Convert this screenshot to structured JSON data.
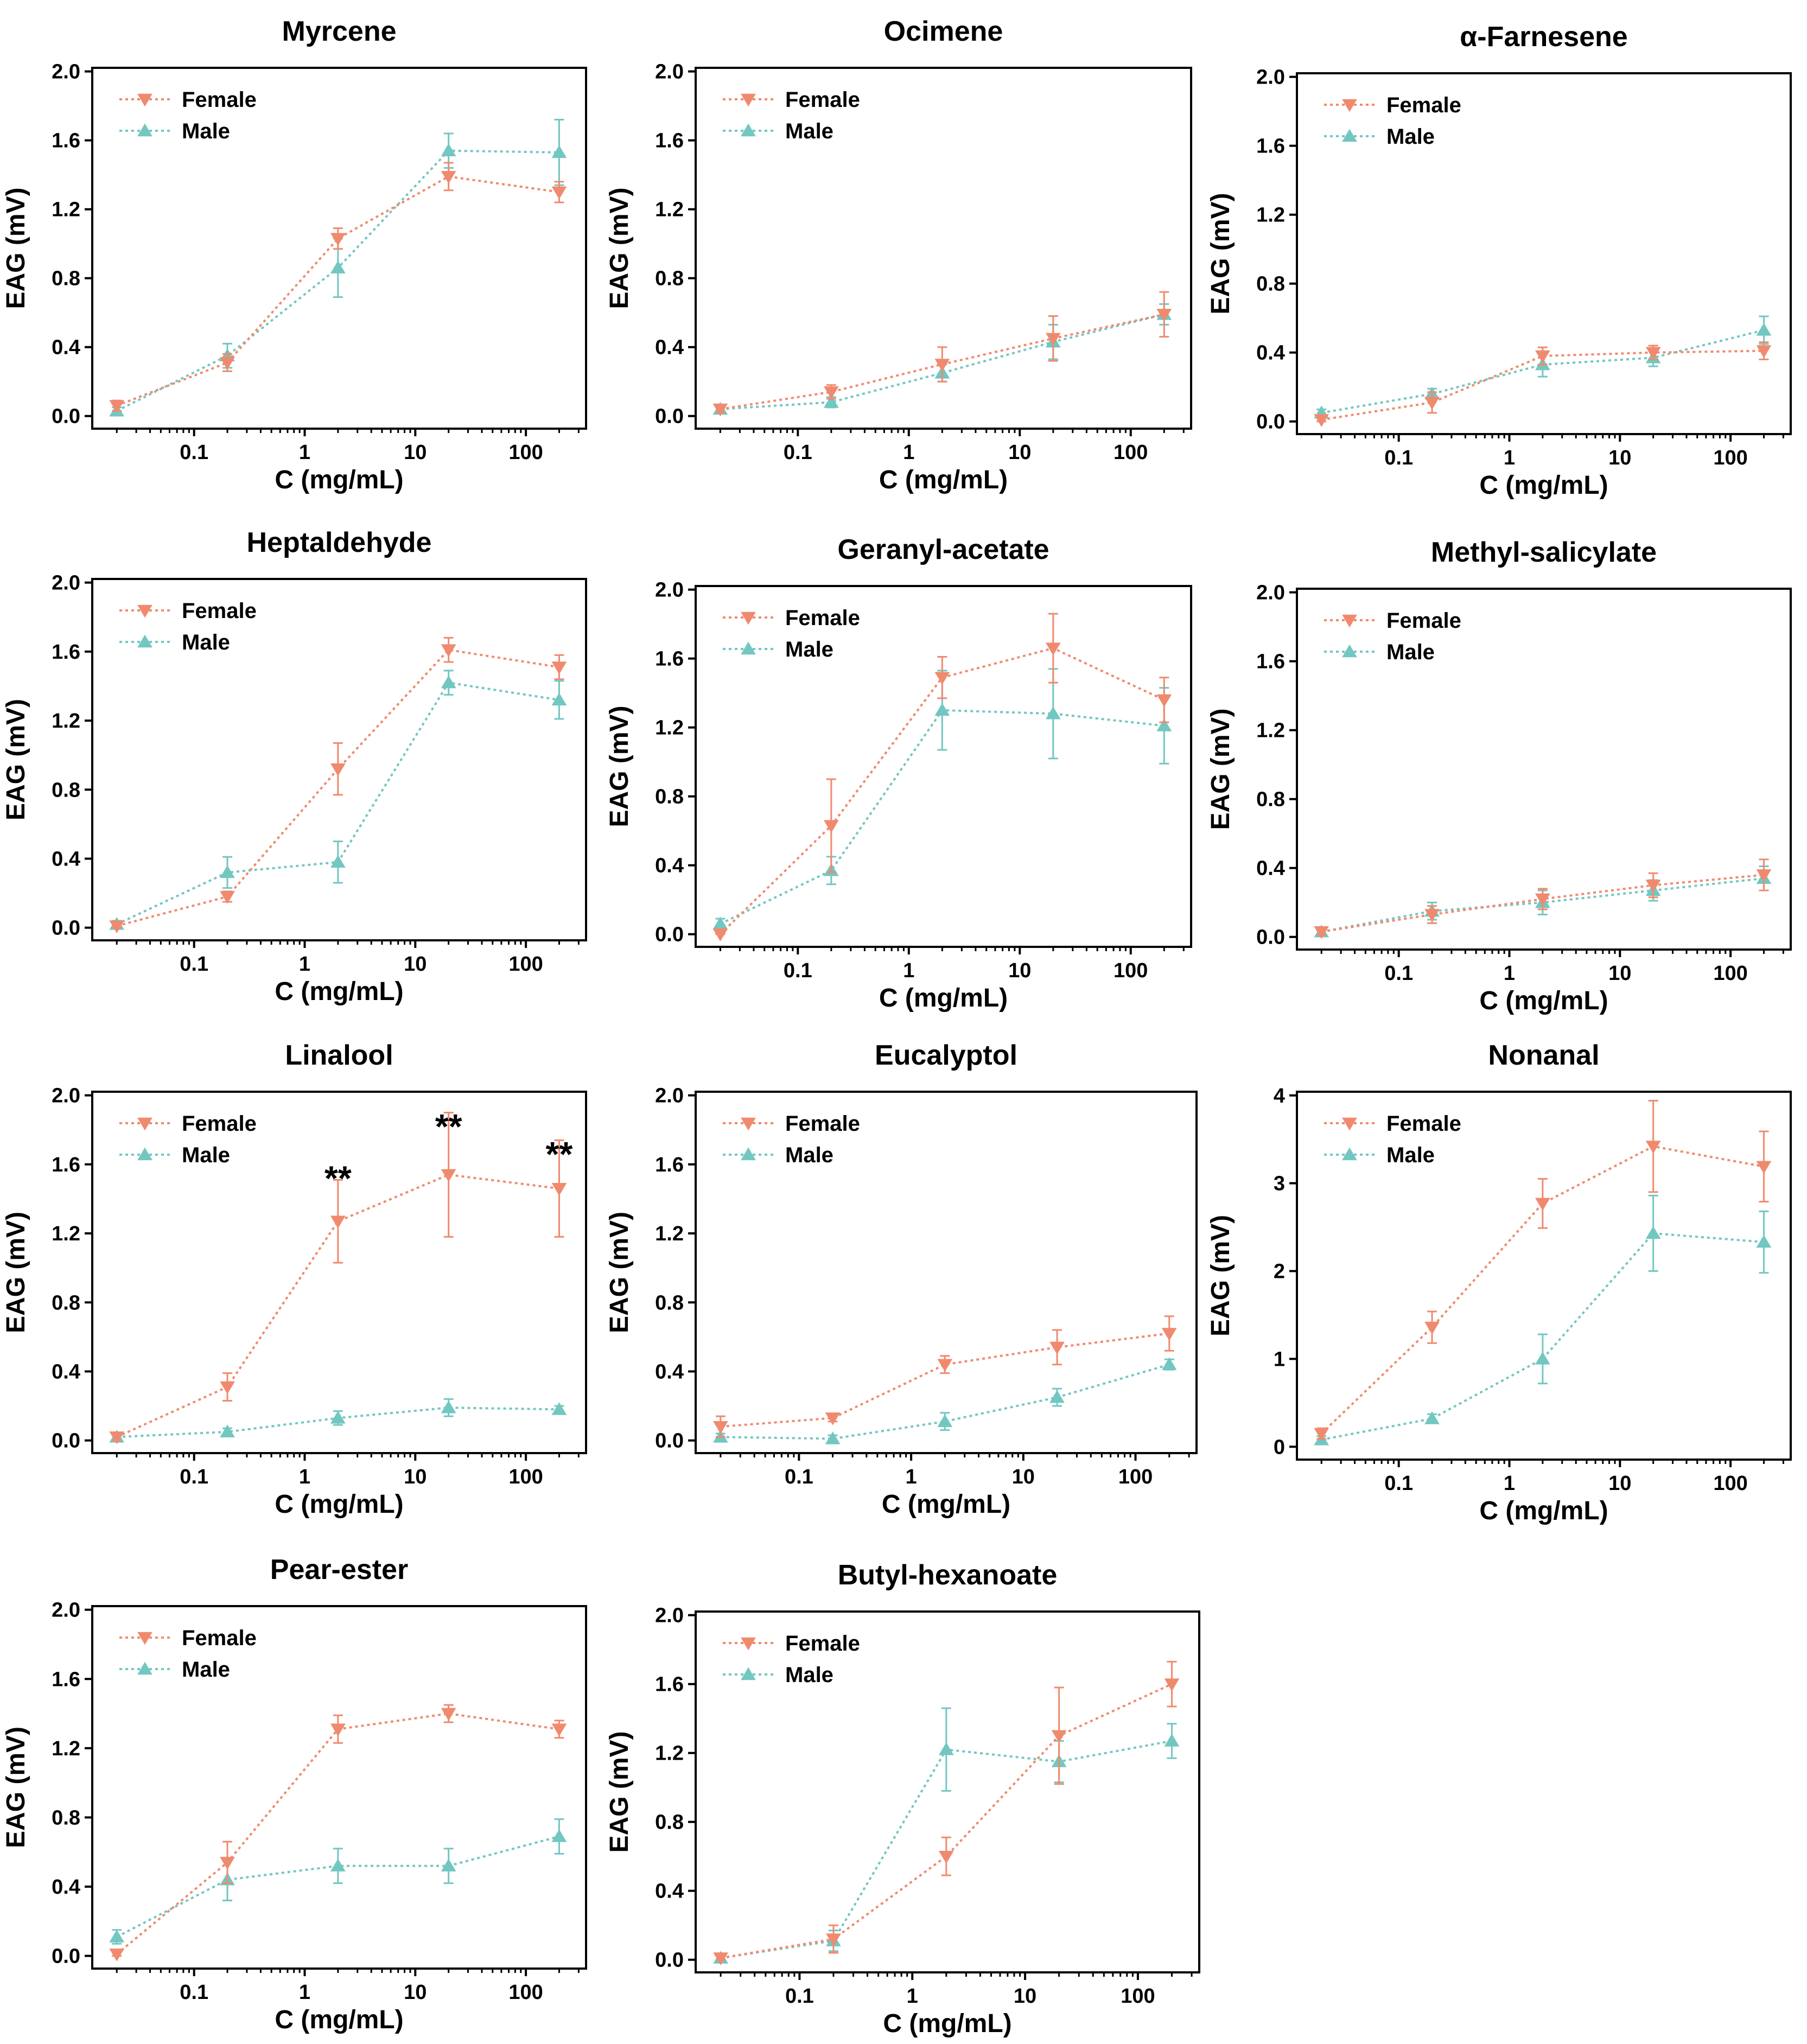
{
  "colors": {
    "female": "#f08a6e",
    "male": "#72c7c1"
  },
  "chart_data": [
    {
      "type": "line",
      "title": "Myrcene",
      "xlabel": "C (mg/mL)",
      "ylabel": "EAG (mV)",
      "xscale": "log",
      "x": [
        0.02,
        0.2,
        2,
        20,
        200
      ],
      "xticks": [
        0.1,
        1,
        10,
        100
      ],
      "xtick_labels": [
        "0.1",
        "1",
        "10",
        "100"
      ],
      "ylim": [
        0,
        2.0
      ],
      "yticks": [
        "0.0",
        "0.4",
        "0.8",
        "1.2",
        "1.6",
        "2.0"
      ],
      "legend": [
        "Female",
        "Male"
      ],
      "legend_position": "top-left",
      "series": [
        {
          "name": "Female",
          "values": [
            0.06,
            0.31,
            1.03,
            1.39,
            1.3
          ],
          "errors": [
            0.03,
            0.05,
            0.06,
            0.08,
            0.06
          ]
        },
        {
          "name": "Male",
          "values": [
            0.03,
            0.35,
            0.86,
            1.54,
            1.53
          ],
          "errors": [
            0.02,
            0.07,
            0.17,
            0.1,
            0.19
          ]
        }
      ],
      "annotations": []
    },
    {
      "type": "line",
      "title": "Ocimene",
      "xlabel": "C (mg/mL)",
      "ylabel": "EAG (mV)",
      "xscale": "log",
      "x": [
        0.02,
        0.2,
        2,
        20,
        200
      ],
      "xticks": [
        0.1,
        1,
        10,
        100
      ],
      "xtick_labels": [
        "0.1",
        "1",
        "10",
        "100"
      ],
      "ylim": [
        0,
        2.0
      ],
      "yticks": [
        "0.0",
        "0.4",
        "0.8",
        "1.2",
        "1.6",
        "2.0"
      ],
      "legend": [
        "Female",
        "Male"
      ],
      "legend_position": "top-left",
      "series": [
        {
          "name": "Female",
          "values": [
            0.04,
            0.14,
            0.3,
            0.45,
            0.59
          ],
          "errors": [
            0.02,
            0.04,
            0.1,
            0.13,
            0.13
          ]
        },
        {
          "name": "Male",
          "values": [
            0.04,
            0.08,
            0.25,
            0.43,
            0.59
          ],
          "errors": [
            0.02,
            0.03,
            0.05,
            0.1,
            0.06
          ]
        }
      ],
      "annotations": []
    },
    {
      "type": "line",
      "title": "α-Farnesene",
      "xlabel": "C (mg/mL)",
      "ylabel": "EAG (mV)",
      "xscale": "log",
      "x": [
        0.02,
        0.2,
        2,
        20,
        200
      ],
      "xticks": [
        0.1,
        1,
        10,
        100
      ],
      "xtick_labels": [
        "0.1",
        "1",
        "10",
        "100"
      ],
      "ylim": [
        0,
        2.0
      ],
      "yticks": [
        "0.0",
        "0.4",
        "0.8",
        "1.2",
        "1.6",
        "2.0"
      ],
      "legend": [
        "Female",
        "Male"
      ],
      "legend_position": "top-left",
      "series": [
        {
          "name": "Female",
          "values": [
            0.01,
            0.11,
            0.38,
            0.4,
            0.41
          ],
          "errors": [
            0.02,
            0.06,
            0.05,
            0.04,
            0.05
          ]
        },
        {
          "name": "Male",
          "values": [
            0.05,
            0.16,
            0.33,
            0.37,
            0.53
          ],
          "errors": [
            0.02,
            0.03,
            0.07,
            0.05,
            0.08
          ]
        }
      ],
      "annotations": []
    },
    {
      "type": "line",
      "title": "Heptaldehyde",
      "xlabel": "C (mg/mL)",
      "ylabel": "EAG (mV)",
      "xscale": "log",
      "x": [
        0.02,
        0.2,
        2,
        20,
        200
      ],
      "xticks": [
        0.1,
        1,
        10,
        100
      ],
      "xtick_labels": [
        "0.1",
        "1",
        "10",
        "100"
      ],
      "ylim": [
        0,
        2.0
      ],
      "yticks": [
        "0.0",
        "0.4",
        "0.8",
        "1.2",
        "1.6",
        "2.0"
      ],
      "legend": [
        "Female",
        "Male"
      ],
      "legend_position": "top-left",
      "series": [
        {
          "name": "Female",
          "values": [
            0.01,
            0.18,
            0.92,
            1.61,
            1.51
          ],
          "errors": [
            0.02,
            0.03,
            0.15,
            0.07,
            0.07
          ]
        },
        {
          "name": "Male",
          "values": [
            0.02,
            0.32,
            0.38,
            1.42,
            1.32
          ],
          "errors": [
            0.02,
            0.09,
            0.12,
            0.07,
            0.11
          ]
        }
      ],
      "annotations": []
    },
    {
      "type": "line",
      "title": "Geranyl-acetate",
      "xlabel": "C (mg/mL)",
      "ylabel": "EAG (mV)",
      "xscale": "log",
      "x": [
        0.02,
        0.2,
        2,
        20,
        200
      ],
      "xticks": [
        0.1,
        1,
        10,
        100
      ],
      "xtick_labels": [
        "0.1",
        "1",
        "10",
        "100"
      ],
      "ylim": [
        0,
        2.0
      ],
      "yticks": [
        "0.0",
        "0.4",
        "0.8",
        "1.2",
        "1.6",
        "2.0"
      ],
      "legend": [
        "Female",
        "Male"
      ],
      "legend_position": "top-left",
      "series": [
        {
          "name": "Female",
          "values": [
            0.0,
            0.63,
            1.49,
            1.66,
            1.36
          ],
          "errors": [
            0.03,
            0.27,
            0.12,
            0.2,
            0.13
          ]
        },
        {
          "name": "Male",
          "values": [
            0.06,
            0.37,
            1.3,
            1.28,
            1.21
          ],
          "errors": [
            0.03,
            0.08,
            0.23,
            0.26,
            0.22
          ]
        }
      ],
      "annotations": []
    },
    {
      "type": "line",
      "title": "Methyl-salicylate",
      "xlabel": "C (mg/mL)",
      "ylabel": "EAG (mV)",
      "xscale": "log",
      "x": [
        0.02,
        0.2,
        2,
        20,
        200
      ],
      "xticks": [
        0.1,
        1,
        10,
        100
      ],
      "xtick_labels": [
        "0.1",
        "1",
        "10",
        "100"
      ],
      "ylim": [
        0,
        2.0
      ],
      "yticks": [
        "0.0",
        "0.4",
        "0.8",
        "1.2",
        "1.6",
        "2.0"
      ],
      "legend": [
        "Female",
        "Male"
      ],
      "legend_position": "top-left",
      "series": [
        {
          "name": "Female",
          "values": [
            0.03,
            0.13,
            0.22,
            0.3,
            0.36
          ],
          "errors": [
            0.02,
            0.05,
            0.06,
            0.07,
            0.09
          ]
        },
        {
          "name": "Male",
          "values": [
            0.03,
            0.15,
            0.2,
            0.27,
            0.34
          ],
          "errors": [
            0.02,
            0.05,
            0.07,
            0.06,
            0.07
          ]
        }
      ],
      "annotations": []
    },
    {
      "type": "line",
      "title": "Linalool",
      "xlabel": "C (mg/mL)",
      "ylabel": "EAG (mV)",
      "xscale": "log",
      "x": [
        0.02,
        0.2,
        2,
        20,
        200
      ],
      "xticks": [
        0.1,
        1,
        10,
        100
      ],
      "xtick_labels": [
        "0.1",
        "1",
        "10",
        "100"
      ],
      "ylim": [
        0,
        2.0
      ],
      "yticks": [
        "0.0",
        "0.4",
        "0.8",
        "1.2",
        "1.6",
        "2.0"
      ],
      "legend": [
        "Female",
        "Male"
      ],
      "legend_position": "top-left",
      "series": [
        {
          "name": "Female",
          "values": [
            0.02,
            0.31,
            1.27,
            1.54,
            1.46
          ],
          "errors": [
            0.02,
            0.08,
            0.24,
            0.36,
            0.28
          ]
        },
        {
          "name": "Male",
          "values": [
            0.02,
            0.05,
            0.13,
            0.19,
            0.18
          ],
          "errors": [
            0.01,
            0.02,
            0.04,
            0.05,
            0.02
          ]
        }
      ],
      "annotations": [
        {
          "text": "**",
          "x": 2,
          "y": 1.52
        },
        {
          "text": "**",
          "x": 20,
          "y": 1.82
        },
        {
          "text": "**",
          "x": 200,
          "y": 1.66
        }
      ]
    },
    {
      "type": "line",
      "title": "Eucalyptol",
      "xlabel": "C (mg/mL)",
      "ylabel": "EAG (mV)",
      "xscale": "log",
      "x": [
        0.02,
        0.2,
        2,
        20,
        200
      ],
      "xticks": [
        0.1,
        1,
        10,
        100
      ],
      "xtick_labels": [
        "0.1",
        "1",
        "10",
        "100"
      ],
      "ylim": [
        0,
        2.0
      ],
      "yticks": [
        "0.0",
        "0.4",
        "0.8",
        "1.2",
        "1.6",
        "2.0"
      ],
      "legend": [
        "Female",
        "Male"
      ],
      "legend_position": "top-left",
      "series": [
        {
          "name": "Female",
          "values": [
            0.08,
            0.13,
            0.44,
            0.54,
            0.62
          ],
          "errors": [
            0.06,
            0.02,
            0.05,
            0.1,
            0.1
          ]
        },
        {
          "name": "Male",
          "values": [
            0.02,
            0.01,
            0.11,
            0.25,
            0.44
          ],
          "errors": [
            0.02,
            0.02,
            0.05,
            0.05,
            0.03
          ]
        }
      ],
      "annotations": []
    },
    {
      "type": "line",
      "title": "Nonanal",
      "xlabel": "C (mg/mL)",
      "ylabel": "EAG (mV)",
      "xscale": "log",
      "x": [
        0.02,
        0.2,
        2,
        20,
        200
      ],
      "xticks": [
        0.1,
        1,
        10,
        100
      ],
      "xtick_labels": [
        "0.1",
        "1",
        "10",
        "100"
      ],
      "ylim": [
        0,
        4
      ],
      "yticks": [
        "0",
        "1",
        "2",
        "3",
        "4"
      ],
      "legend": [
        "Female",
        "Male"
      ],
      "legend_position": "top-left",
      "series": [
        {
          "name": "Female",
          "values": [
            0.15,
            1.36,
            2.77,
            3.42,
            3.19
          ],
          "errors": [
            0.06,
            0.18,
            0.28,
            0.52,
            0.4
          ]
        },
        {
          "name": "Male",
          "values": [
            0.08,
            0.32,
            1.0,
            2.43,
            2.33
          ],
          "errors": [
            0.04,
            0.05,
            0.28,
            0.43,
            0.35
          ]
        }
      ],
      "annotations": []
    },
    {
      "type": "line",
      "title": "Pear-ester",
      "xlabel": "C (mg/mL)",
      "ylabel": "EAG (mV)",
      "xscale": "log",
      "x": [
        0.02,
        0.2,
        2,
        20,
        200
      ],
      "xticks": [
        0.1,
        1,
        10,
        100
      ],
      "xtick_labels": [
        "0.1",
        "1",
        "10",
        "100"
      ],
      "ylim": [
        0,
        2.0
      ],
      "yticks": [
        "0.0",
        "0.4",
        "0.8",
        "1.2",
        "1.6",
        "2.0"
      ],
      "legend": [
        "Female",
        "Male"
      ],
      "legend_position": "top-left",
      "series": [
        {
          "name": "Female",
          "values": [
            0.01,
            0.54,
            1.31,
            1.4,
            1.31
          ],
          "errors": [
            0.02,
            0.12,
            0.08,
            0.05,
            0.05
          ]
        },
        {
          "name": "Male",
          "values": [
            0.11,
            0.44,
            0.52,
            0.52,
            0.69
          ],
          "errors": [
            0.04,
            0.12,
            0.1,
            0.1,
            0.1
          ]
        }
      ],
      "annotations": []
    },
    {
      "type": "line",
      "title": "Butyl-hexanoate",
      "xlabel": "C (mg/mL)",
      "ylabel": "EAG (mV)",
      "xscale": "log",
      "x": [
        0.02,
        0.2,
        2,
        20,
        200
      ],
      "xticks": [
        0.1,
        1,
        10,
        100
      ],
      "xtick_labels": [
        "0.1",
        "1",
        "10",
        "100"
      ],
      "ylim": [
        0,
        2.0
      ],
      "yticks": [
        "0.0",
        "0.4",
        "0.8",
        "1.2",
        "1.6",
        "2.0"
      ],
      "legend": [
        "Female",
        "Male"
      ],
      "legend_position": "top-left",
      "series": [
        {
          "name": "Female",
          "values": [
            0.01,
            0.12,
            0.6,
            1.3,
            1.6
          ],
          "errors": [
            0.02,
            0.08,
            0.11,
            0.28,
            0.13
          ]
        },
        {
          "name": "Male",
          "values": [
            0.01,
            0.11,
            1.22,
            1.15,
            1.27
          ],
          "errors": [
            0.02,
            0.06,
            0.24,
            0.12,
            0.1
          ]
        }
      ],
      "annotations": []
    }
  ]
}
